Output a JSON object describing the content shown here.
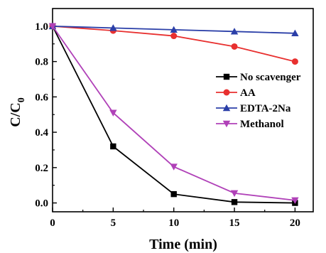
{
  "chart_data": {
    "type": "line",
    "title": "",
    "xlabel": "Time (min)",
    "ylabel_main": "C/C",
    "ylabel_sub": "0",
    "xlim": [
      0,
      21.5
    ],
    "ylim": [
      -0.05,
      1.1
    ],
    "x_ticks": [
      0,
      5,
      10,
      15,
      20
    ],
    "x_tick_labels": [
      "0",
      "5",
      "10",
      "15",
      "20"
    ],
    "y_ticks": [
      0.0,
      0.2,
      0.4,
      0.6,
      0.8,
      1.0
    ],
    "y_tick_labels": [
      "0.0",
      "0.2",
      "0.4",
      "0.6",
      "0.8",
      "1.0"
    ],
    "legend_position": "center-right",
    "grid": false,
    "x": [
      0,
      5,
      10,
      15,
      20
    ],
    "series": [
      {
        "name": "No scavenger",
        "values": [
          1.0,
          0.32,
          0.05,
          0.005,
          0.0
        ],
        "color": "#000000",
        "marker": "square"
      },
      {
        "name": "AA",
        "values": [
          1.0,
          0.975,
          0.945,
          0.885,
          0.8
        ],
        "color": "#e8302f",
        "marker": "circle"
      },
      {
        "name": "EDTA-2Na",
        "values": [
          1.0,
          0.99,
          0.98,
          0.97,
          0.96
        ],
        "color": "#2b3fa8",
        "marker": "triangle-up"
      },
      {
        "name": "Methanol",
        "values": [
          1.0,
          0.51,
          0.205,
          0.055,
          0.015
        ],
        "color": "#b041b8",
        "marker": "triangle-down"
      }
    ]
  }
}
